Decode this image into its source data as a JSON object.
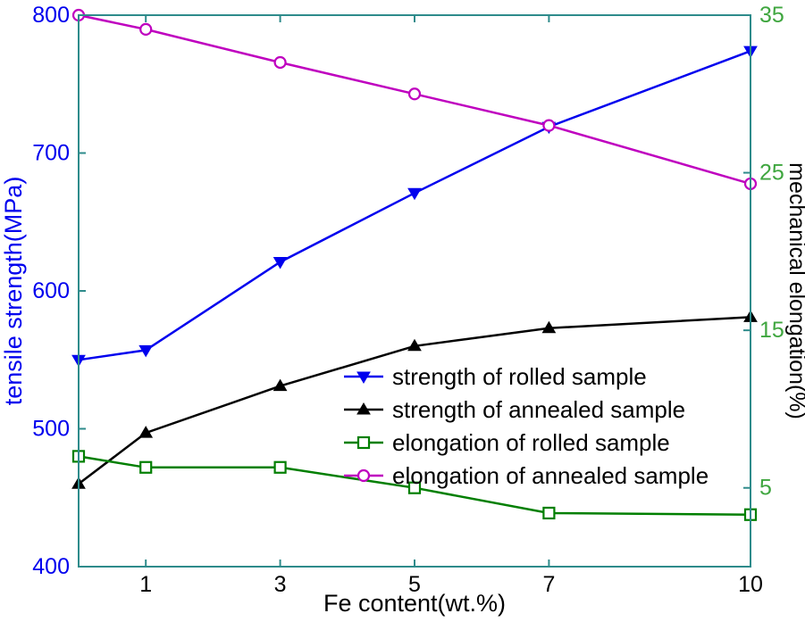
{
  "chart_data": {
    "type": "line",
    "title": "",
    "xlabel": "Fe content(wt.%)",
    "x": [
      0,
      1,
      3,
      5,
      7,
      10
    ],
    "x_range": [
      0,
      10
    ],
    "x_ticks": [
      1,
      3,
      5,
      7,
      10
    ],
    "left_axis": {
      "label": "tensile strength(MPa)",
      "range": [
        400,
        800
      ],
      "ticks": [
        400,
        500,
        600,
        700,
        800
      ],
      "color": "#0000EE"
    },
    "right_axis": {
      "label": "mechanical elongation(%)",
      "range": [
        0,
        35
      ],
      "ticks": [
        5,
        15,
        25,
        35
      ],
      "color": "#3FA63F",
      "label_color": "#000000"
    },
    "frame_color": "#2E8B8B",
    "grid": false,
    "legend_position": "center-right-inside",
    "series": [
      {
        "name": "strength of rolled sample",
        "axis": "left",
        "color": "#0000EE",
        "marker": "triangle-down",
        "values": [
          550,
          557,
          621,
          671,
          719,
          774
        ]
      },
      {
        "name": "strength of annealed sample",
        "axis": "left",
        "color": "#000000",
        "marker": "triangle-up",
        "values": [
          460,
          497,
          531,
          560,
          573,
          581
        ]
      },
      {
        "name": "elongation of rolled sample",
        "axis": "right",
        "color": "#007F00",
        "marker": "square",
        "values": [
          7.0,
          6.3,
          6.3,
          5.0,
          3.4,
          3.3
        ]
      },
      {
        "name": "elongation of annealed sample",
        "axis": "right",
        "color": "#BF00BF",
        "marker": "circle",
        "values": [
          35.0,
          34.1,
          32.0,
          30.0,
          28.0,
          24.3
        ]
      }
    ]
  }
}
